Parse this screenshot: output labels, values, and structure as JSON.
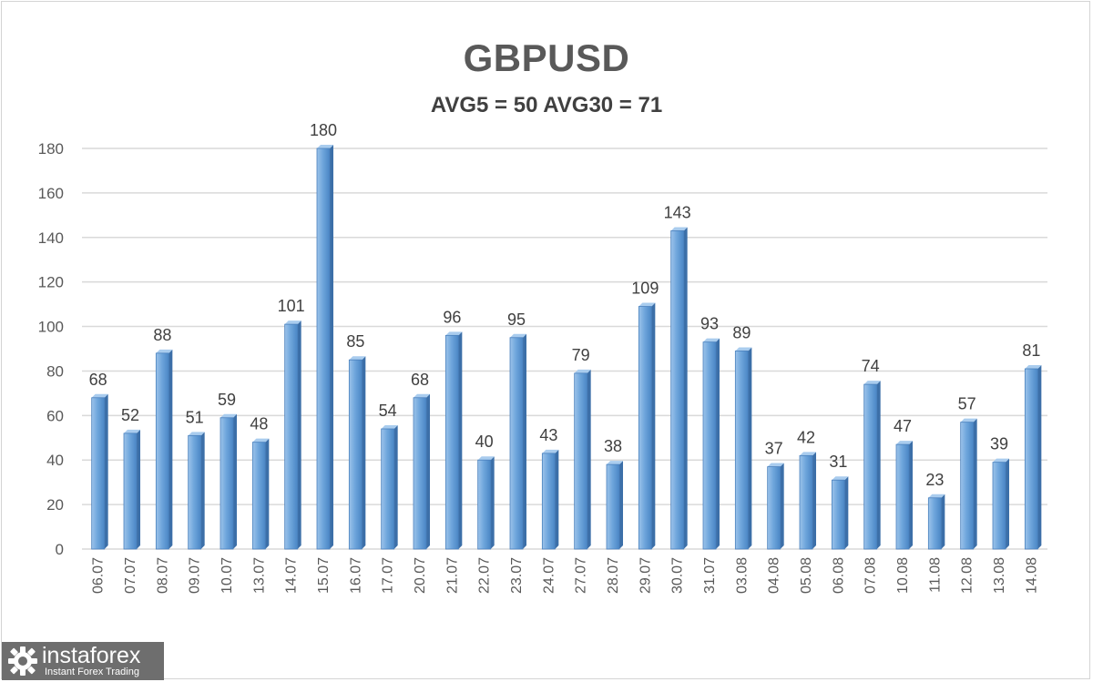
{
  "chart_data": {
    "type": "bar",
    "title": "GBPUSD",
    "subtitle": "AVG5 = 50 AVG30 = 71",
    "categories": [
      "06.07",
      "07.07",
      "08.07",
      "09.07",
      "10.07",
      "13.07",
      "14.07",
      "15.07",
      "16.07",
      "17.07",
      "20.07",
      "21.07",
      "22.07",
      "23.07",
      "24.07",
      "27.07",
      "28.07",
      "29.07",
      "30.07",
      "31.07",
      "03.08",
      "04.08",
      "05.08",
      "06.08",
      "07.08",
      "10.08",
      "11.08",
      "12.08",
      "13.08",
      "14.08"
    ],
    "values": [
      68,
      52,
      88,
      51,
      59,
      48,
      101,
      180,
      85,
      54,
      68,
      96,
      40,
      95,
      43,
      79,
      38,
      109,
      143,
      93,
      89,
      37,
      42,
      31,
      74,
      47,
      23,
      57,
      39,
      81
    ],
    "ylim": [
      0,
      180
    ],
    "yticks": [
      0,
      20,
      40,
      60,
      80,
      100,
      120,
      140,
      160,
      180
    ],
    "grid": true,
    "legend": "none",
    "bar_color": "#5b9bd5"
  },
  "watermark": {
    "name": "instaforex",
    "tagline": "Instant Forex Trading"
  }
}
